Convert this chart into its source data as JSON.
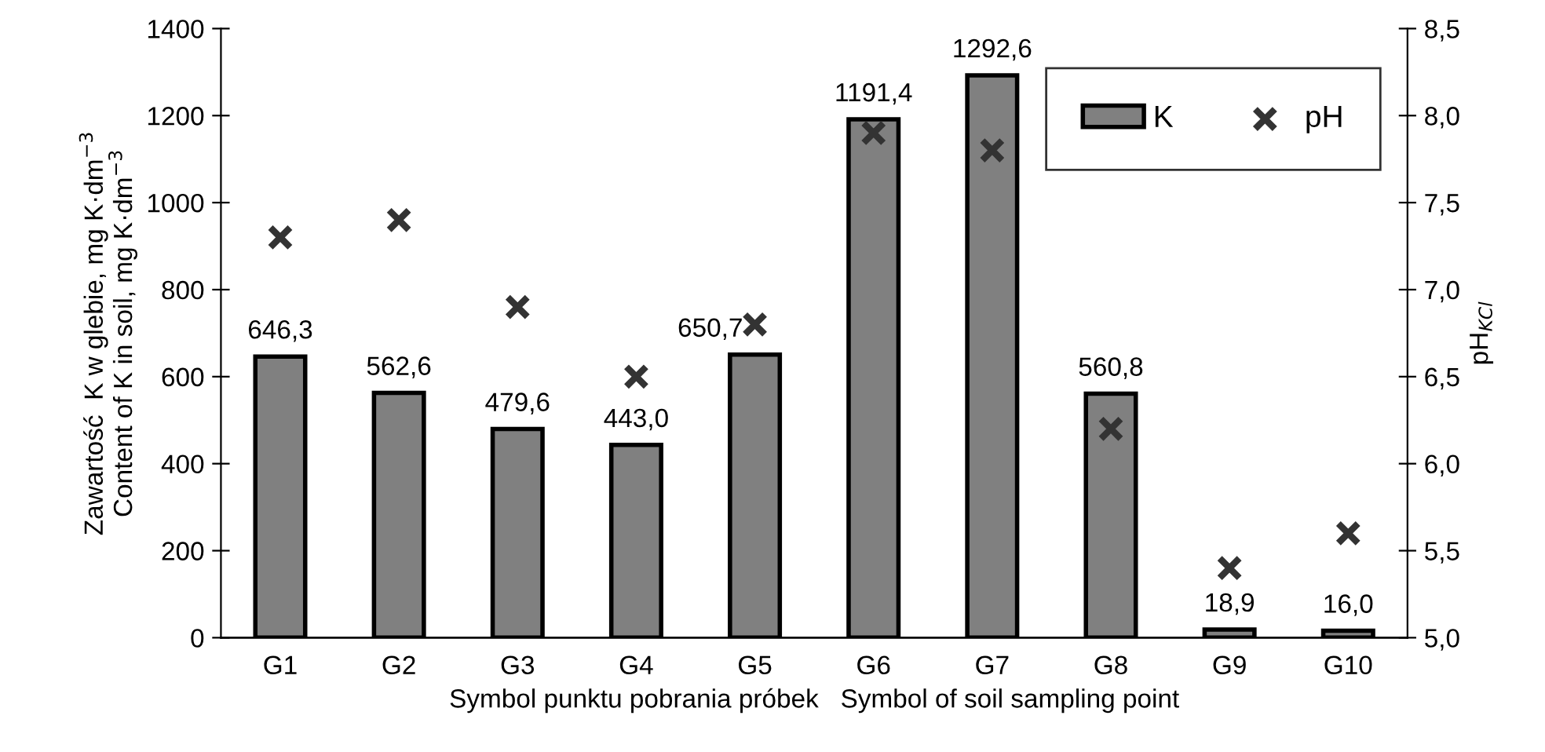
{
  "chart_data": {
    "type": "bar",
    "xlabel": "Symbol punktu pobrania próbek   Symbol of soil sampling point",
    "ylabel": "Zawartość  K w glebie, mg K·dm$^{−3}$\nContent of K in soil, mg K·dm$^{−3}$",
    "y2label": "pH$_{KCl}$",
    "categories": [
      "G1",
      "G2",
      "G3",
      "G4",
      "G5",
      "G6",
      "G7",
      "G8",
      "G9",
      "G10"
    ],
    "series": [
      {
        "name": "K",
        "color": "#808080",
        "values": [
          646.3,
          562.6,
          479.6,
          443.0,
          650.7,
          1191.4,
          1292.6,
          560.8,
          18.9,
          16.0
        ],
        "value_labels": [
          "646,3",
          "562,6",
          "479,6",
          "443,0",
          "650,7",
          "1191,4",
          "1292,6",
          "560,8",
          "18,9",
          "16,0"
        ]
      },
      {
        "name": "pH",
        "type": "scatter",
        "axis": "y2",
        "color": "#333333",
        "marker": "cross",
        "values": [
          7.3,
          7.4,
          6.9,
          6.5,
          6.8,
          7.9,
          7.8,
          6.2,
          5.4,
          5.6
        ]
      }
    ],
    "ylim": [
      0,
      1400
    ],
    "yticks": [
      0,
      200,
      400,
      600,
      800,
      1000,
      1200,
      1400
    ],
    "y2lim": [
      5.0,
      8.5
    ],
    "y2ticks": [
      {
        "value": 5.0,
        "label": "5,0"
      },
      {
        "value": 5.5,
        "label": "5,5"
      },
      {
        "value": 6.0,
        "label": "6,0"
      },
      {
        "value": 6.5,
        "label": "6,5"
      },
      {
        "value": 7.0,
        "label": "7,0"
      },
      {
        "value": 7.5,
        "label": "7,5"
      },
      {
        "value": 8.0,
        "label": "8,0"
      },
      {
        "value": 8.5,
        "label": "8,5"
      }
    ],
    "grid": false,
    "legend": "top right"
  }
}
